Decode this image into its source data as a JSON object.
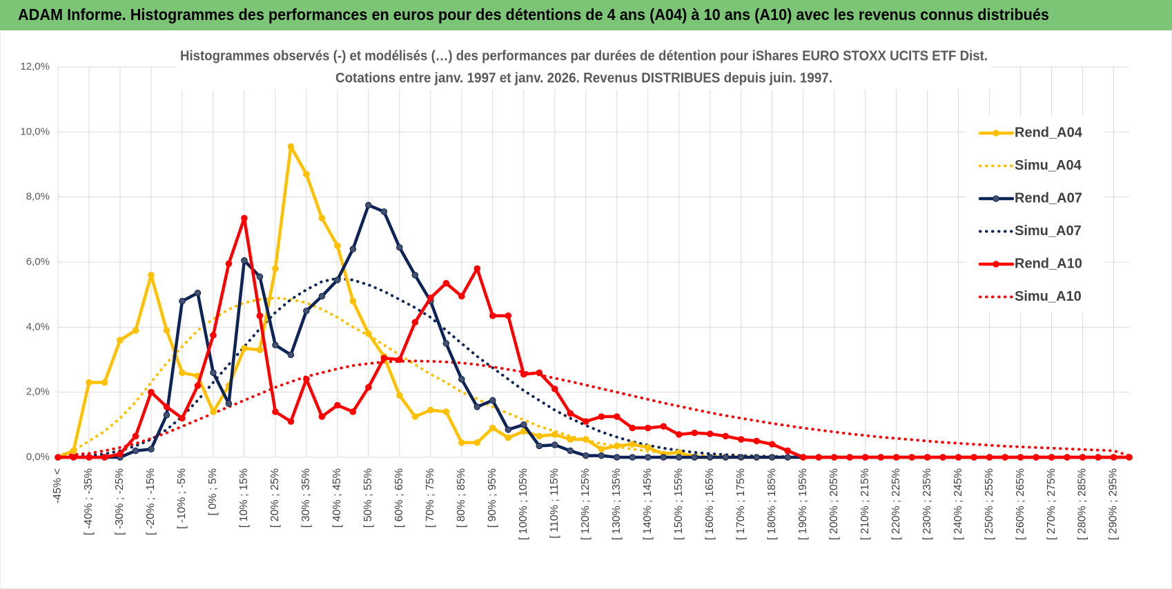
{
  "header": {
    "title": "ADAM Informe. Histogrammes des performances en euros pour des détentions de 4 ans (A04) à 10 ans (A10) avec les revenus connus distribués"
  },
  "chart_data": {
    "type": "line",
    "title": "Histogrammes observés (-) et modélisés (…) des performances par durées de détention pour iShares EURO STOXX UCITS ETF Dist.",
    "subtitle": "Cotations entre janv. 1997 et janv. 2026. Revenus DISTRIBUES depuis juin. 1997.",
    "categories": [
      "-45% <",
      null,
      "[ -40% ; -35%",
      null,
      "[ -30% ; -25%",
      null,
      "[ -20% ; -15%",
      null,
      "[ -10% ; -5%",
      null,
      "[ 0% ; 5%",
      null,
      "[ 10% ; 15%",
      null,
      "[ 20% ; 25%",
      null,
      "[ 30% ; 35%",
      null,
      "[ 40% ; 45%",
      null,
      "[ 50% ; 55%",
      null,
      "[ 60% ; 65%",
      null,
      "[ 70% ; 75%",
      null,
      "[ 80% ; 85%",
      null,
      "[ 90% ; 95%",
      null,
      "[ 100% ; 105%",
      null,
      "[ 110% ; 115%",
      null,
      "[ 120% ; 125%",
      null,
      "[ 130% ; 135%",
      null,
      "[ 140% ; 145%",
      null,
      "[ 150% ; 155%",
      null,
      "[ 160% ; 165%",
      null,
      "[ 170% ; 175%",
      null,
      "[ 180% ; 185%",
      null,
      "[ 190% ; 195%",
      null,
      "[ 200% ; 205%",
      null,
      "[ 210% ; 215%",
      null,
      "[ 220% ; 225%",
      null,
      "[ 230% ; 235%",
      null,
      "[ 240% ; 245%",
      null,
      "[ 250% ; 255%",
      null,
      "[ 260% ; 265%",
      null,
      "[ 270% ; 275%",
      null,
      "[ 280% ; 285%",
      null,
      "[ 290% ; 295%",
      null
    ],
    "series": [
      {
        "name": "Rend_A04",
        "color": "#FFC000",
        "style": "solid",
        "markers": true,
        "values": [
          0,
          0.2,
          2.3,
          2.3,
          3.6,
          3.9,
          5.6,
          3.9,
          2.6,
          2.5,
          1.4,
          2.2,
          3.35,
          3.3,
          5.8,
          9.55,
          8.7,
          7.35,
          6.5,
          4.8,
          3.8,
          3.1,
          1.9,
          1.25,
          1.45,
          1.4,
          0.45,
          0.45,
          0.9,
          0.6,
          0.8,
          0.65,
          0.7,
          0.55,
          0.55,
          0.25,
          0.35,
          0.4,
          0.3,
          0.1,
          0.15,
          0,
          0,
          0,
          0,
          0,
          0,
          0,
          0,
          0,
          0,
          0,
          0,
          0,
          0,
          0,
          0,
          0,
          0,
          0,
          0,
          0,
          0,
          0,
          0,
          0,
          0,
          0,
          0,
          0
        ]
      },
      {
        "name": "Simu_A04",
        "color": "#FFC000",
        "style": "dotted",
        "markers": false,
        "values": [
          0.05,
          0.2,
          0.5,
          0.8,
          1.2,
          1.7,
          2.3,
          2.9,
          3.4,
          3.9,
          4.25,
          4.55,
          4.75,
          4.85,
          4.9,
          4.85,
          4.75,
          4.55,
          4.3,
          4.0,
          3.75,
          3.45,
          3.15,
          2.85,
          2.55,
          2.3,
          2.0,
          1.8,
          1.55,
          1.35,
          1.15,
          0.95,
          0.8,
          0.65,
          0.52,
          0.42,
          0.33,
          0.25,
          0.19,
          0.14,
          0.1,
          0.07,
          0.05,
          0.03,
          0.02,
          0.01,
          0,
          0,
          0,
          0,
          0,
          0,
          0,
          0,
          0,
          0,
          0,
          0,
          0,
          0,
          0,
          0,
          0,
          0,
          0,
          0,
          0,
          0,
          0,
          0
        ]
      },
      {
        "name": "Rend_A07",
        "color": "#0E2356",
        "style": "solid",
        "markers": true,
        "values": [
          0,
          0,
          0,
          0,
          0,
          0.2,
          0.25,
          1.3,
          4.8,
          5.05,
          2.6,
          1.65,
          6.05,
          5.55,
          3.45,
          3.15,
          4.5,
          4.95,
          5.45,
          6.4,
          7.75,
          7.55,
          6.45,
          5.6,
          4.8,
          3.5,
          2.4,
          1.55,
          1.75,
          0.85,
          1.0,
          0.35,
          0.38,
          0.2,
          0.05,
          0.05,
          0,
          0,
          0,
          0,
          0,
          0,
          0,
          0,
          0,
          0,
          0,
          0,
          0,
          0,
          0,
          0,
          0,
          0,
          0,
          0,
          0,
          0,
          0,
          0,
          0,
          0,
          0,
          0,
          0,
          0,
          0,
          0,
          0,
          0
        ]
      },
      {
        "name": "Simu_A07",
        "color": "#0E2356",
        "style": "dotted",
        "markers": false,
        "values": [
          0,
          0.02,
          0.05,
          0.1,
          0.2,
          0.35,
          0.55,
          0.85,
          1.25,
          1.75,
          2.3,
          2.85,
          3.4,
          3.95,
          4.45,
          4.85,
          5.15,
          5.4,
          5.5,
          5.45,
          5.3,
          5.1,
          4.85,
          4.6,
          4.3,
          3.9,
          3.5,
          3.1,
          2.75,
          2.4,
          2.05,
          1.75,
          1.45,
          1.2,
          0.98,
          0.78,
          0.62,
          0.48,
          0.37,
          0.28,
          0.21,
          0.15,
          0.11,
          0.08,
          0.05,
          0.04,
          0.03,
          0.02,
          0.01,
          0,
          0,
          0,
          0,
          0,
          0,
          0,
          0,
          0,
          0,
          0,
          0,
          0,
          0,
          0,
          0,
          0,
          0,
          0,
          0,
          0
        ]
      },
      {
        "name": "Rend_A10",
        "color": "#FF0000",
        "style": "solid",
        "markers": true,
        "values": [
          0,
          0,
          0,
          0,
          0.1,
          0.65,
          2.0,
          1.55,
          1.2,
          2.2,
          3.75,
          5.95,
          7.35,
          4.35,
          1.4,
          1.1,
          2.4,
          1.25,
          1.6,
          1.4,
          2.15,
          3.05,
          3.0,
          4.15,
          4.9,
          5.35,
          4.95,
          5.8,
          4.35,
          4.35,
          2.55,
          2.6,
          2.1,
          1.35,
          1.1,
          1.25,
          1.25,
          0.9,
          0.9,
          0.95,
          0.7,
          0.75,
          0.72,
          0.65,
          0.55,
          0.5,
          0.4,
          0.2,
          0,
          0,
          0,
          0,
          0,
          0,
          0,
          0,
          0,
          0,
          0,
          0,
          0,
          0,
          0,
          0,
          0,
          0,
          0,
          0,
          0,
          0
        ]
      },
      {
        "name": "Simu_A10",
        "color": "#FF0000",
        "style": "dotted",
        "markers": false,
        "values": [
          0.05,
          0.08,
          0.12,
          0.2,
          0.3,
          0.42,
          0.58,
          0.75,
          0.95,
          1.15,
          1.35,
          1.55,
          1.75,
          1.95,
          2.15,
          2.32,
          2.48,
          2.6,
          2.72,
          2.82,
          2.88,
          2.93,
          2.95,
          2.96,
          2.95,
          2.93,
          2.9,
          2.85,
          2.78,
          2.7,
          2.62,
          2.53,
          2.43,
          2.33,
          2.22,
          2.11,
          2.0,
          1.89,
          1.78,
          1.67,
          1.57,
          1.47,
          1.37,
          1.28,
          1.2,
          1.12,
          1.04,
          0.97,
          0.9,
          0.84,
          0.78,
          0.72,
          0.67,
          0.62,
          0.58,
          0.54,
          0.5,
          0.46,
          0.43,
          0.4,
          0.37,
          0.34,
          0.32,
          0.3,
          0.28,
          0.26,
          0.24,
          0.22,
          0.2,
          0.05
        ]
      }
    ],
    "ylim": [
      0,
      12
    ],
    "yticks": [
      {
        "value": 0,
        "label": "0,0%"
      },
      {
        "value": 2,
        "label": "2,0%"
      },
      {
        "value": 4,
        "label": "4,0%"
      },
      {
        "value": 6,
        "label": "6,0%"
      },
      {
        "value": 8,
        "label": "8,0%"
      },
      {
        "value": 10,
        "label": "10,0%"
      },
      {
        "value": 12,
        "label": "12,0%"
      }
    ],
    "grid": true,
    "legend": "right"
  }
}
